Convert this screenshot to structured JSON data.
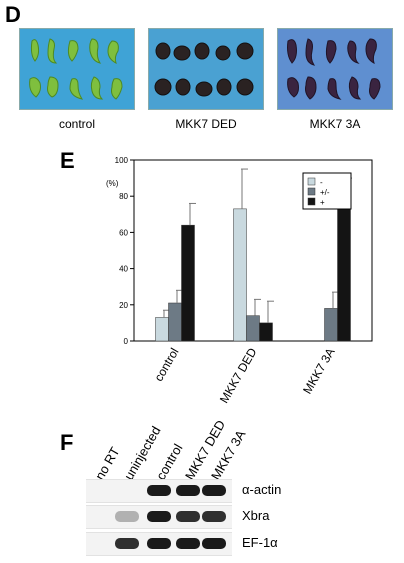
{
  "panel_d": {
    "letter": "D",
    "photos": [
      {
        "label": "control",
        "bg": "#3fa3d6"
      },
      {
        "label": "MKK7 DED",
        "bg": "#4aa1d2"
      },
      {
        "label": "MKK7 3A",
        "bg": "#5f8fd0"
      }
    ]
  },
  "panel_e": {
    "letter": "E",
    "chart_data": {
      "type": "bar",
      "categories": [
        "control",
        "MKK7 DED",
        "MKK7 3A"
      ],
      "ylabel": "(%)",
      "ylim": [
        0,
        100
      ],
      "yticks": [
        0,
        20,
        40,
        60,
        80,
        100
      ],
      "legend_position": "top-right",
      "series": [
        {
          "name": "-",
          "color": "#c9d9df",
          "values": [
            13,
            73,
            0
          ],
          "errors": [
            4,
            22,
            0
          ]
        },
        {
          "name": "+/-",
          "color": "#6d7a85",
          "values": [
            21,
            14,
            18
          ],
          "errors": [
            7,
            9,
            9
          ]
        },
        {
          "name": "+",
          "color": "#141414",
          "values": [
            64,
            10,
            81
          ],
          "errors": [
            12,
            12,
            9
          ]
        }
      ]
    }
  },
  "panel_f": {
    "letter": "F",
    "lanes": [
      "no RT",
      "uninjected",
      "control",
      "MKK7 DED",
      "MKK7 3A"
    ],
    "rows": [
      {
        "label": "α-actin",
        "bands": [
          0,
          0,
          1,
          1,
          1
        ]
      },
      {
        "label": "Xbra",
        "bands": [
          0,
          0.3,
          1,
          0.9,
          0.9
        ]
      },
      {
        "label": "EF-1α",
        "bands": [
          0,
          0.9,
          1,
          1,
          1
        ]
      }
    ]
  }
}
